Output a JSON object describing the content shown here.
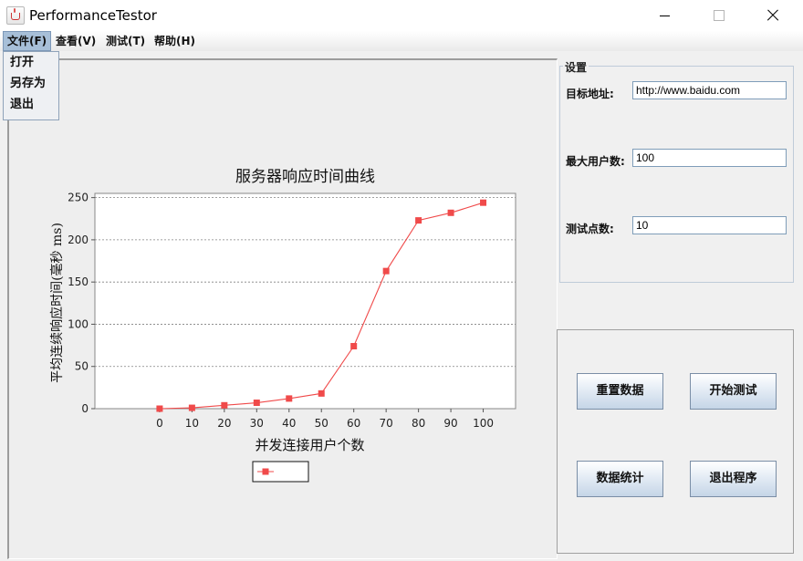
{
  "window": {
    "title": "PerformanceTestor"
  },
  "menubar": {
    "items": [
      "文件(F)",
      "查看(V)",
      "测试(T)",
      "帮助(H)"
    ],
    "file_menu": {
      "items": [
        "打开",
        "另存为",
        "退出"
      ]
    }
  },
  "settings": {
    "group_title": "设置",
    "target_url": {
      "label": "目标地址:",
      "value": "http://www.baidu.com"
    },
    "max_users": {
      "label": "最大用户数:",
      "value": "100"
    },
    "test_points": {
      "label": "测试点数:",
      "value": "10"
    }
  },
  "buttons": {
    "reset": "重置数据",
    "start": "开始测试",
    "stats": "数据统计",
    "exit": "退出程序"
  },
  "chart_data": {
    "type": "line",
    "title": "服务器响应时间曲线",
    "xlabel": "并发连接用户个数",
    "ylabel": "平均连续响应时间(毫秒 ms)",
    "x": [
      0,
      10,
      20,
      30,
      40,
      50,
      60,
      70,
      80,
      90,
      100
    ],
    "series": [
      {
        "name": "",
        "values": [
          0,
          1,
          4,
          7,
          12,
          18,
          74,
          163,
          223,
          232,
          244
        ]
      }
    ],
    "xlim": [
      -20,
      110
    ],
    "ylim": [
      0,
      255
    ],
    "yticks": [
      0,
      50,
      100,
      150,
      200,
      250
    ],
    "color": "#f04a4a",
    "legend": "bottom-center"
  }
}
